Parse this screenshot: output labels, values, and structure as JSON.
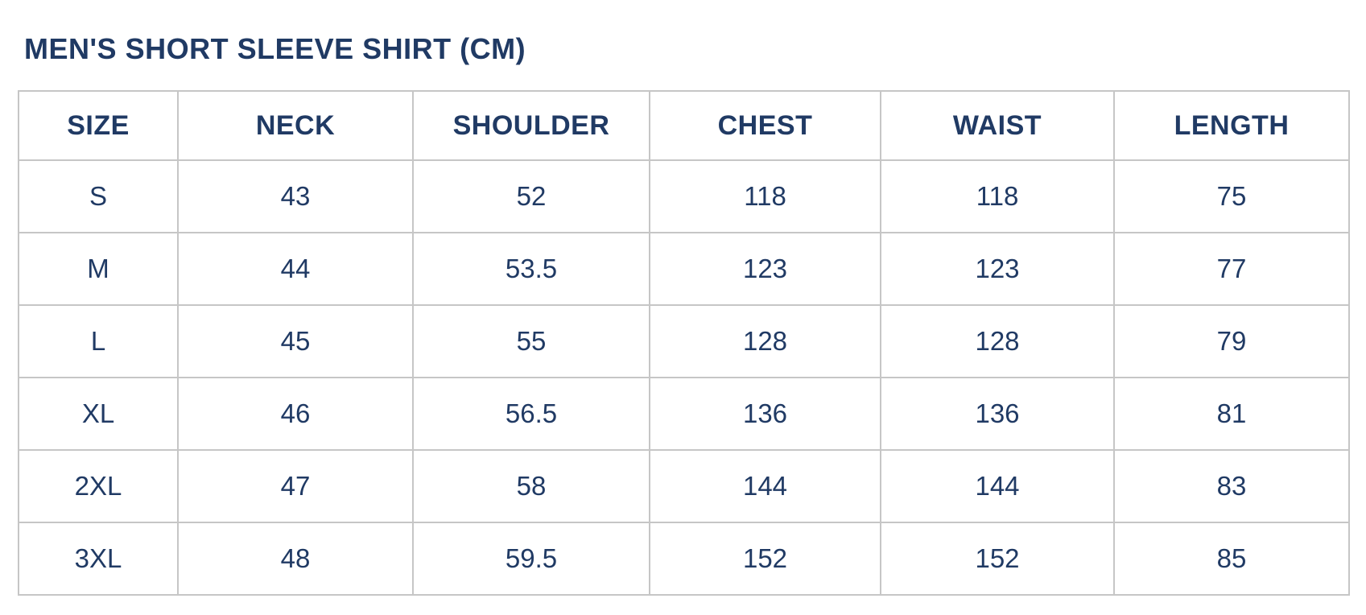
{
  "page": {
    "title": "MEN'S SHORT SLEEVE SHIRT (CM)"
  },
  "size_chart": {
    "columns": [
      "SIZE",
      "NECK",
      "SHOULDER",
      "CHEST",
      "WAIST",
      "LENGTH"
    ],
    "rows": [
      [
        "S",
        "43",
        "52",
        "118",
        "118",
        "75"
      ],
      [
        "M",
        "44",
        "53.5",
        "123",
        "123",
        "77"
      ],
      [
        "L",
        "45",
        "55",
        "128",
        "128",
        "79"
      ],
      [
        "XL",
        "46",
        "56.5",
        "136",
        "136",
        "81"
      ],
      [
        "2XL",
        "47",
        "58",
        "144",
        "144",
        "83"
      ],
      [
        "3XL",
        "48",
        "59.5",
        "152",
        "152",
        "85"
      ]
    ]
  },
  "colors": {
    "text_navy": "#203a64",
    "border_gray": "#c6c6c6",
    "background": "#ffffff"
  }
}
